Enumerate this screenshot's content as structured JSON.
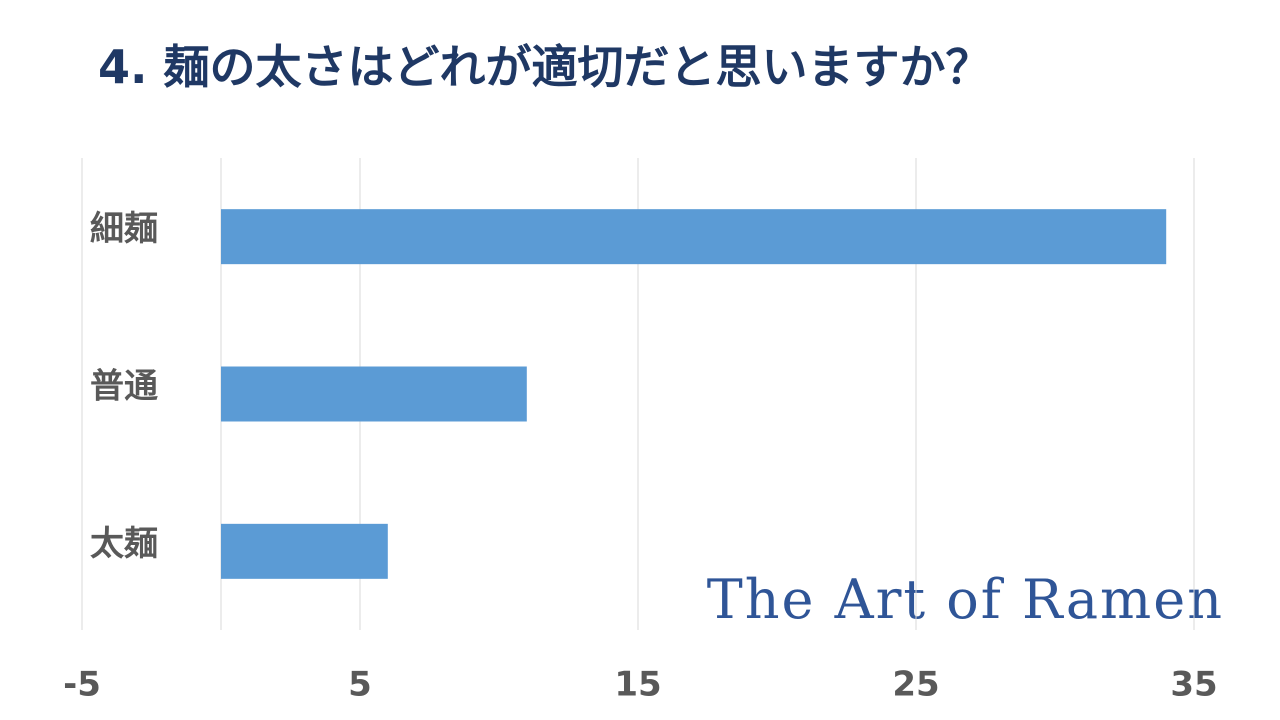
{
  "chart_data": {
    "type": "bar",
    "orientation": "horizontal",
    "title": "4. 麺の太さはどれが適切だと思いますか？",
    "annotation": "The Art of Ramen",
    "categories": [
      "細麺",
      "普通",
      "太麺"
    ],
    "values": [
      34,
      11,
      6
    ],
    "color": "#5b9bd5",
    "xlim": [
      -5,
      35
    ],
    "xticks": [
      -5,
      5,
      15,
      25,
      35
    ],
    "grid": true
  }
}
